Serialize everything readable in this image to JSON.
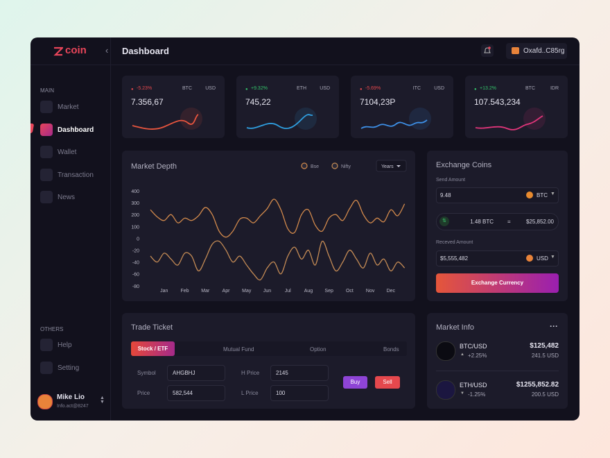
{
  "header": {
    "brand": "coin",
    "title": "Dashboard",
    "wallet": "Oxafd..C85rg"
  },
  "sidebar": {
    "main_label": "MAIN",
    "main_items": [
      "Market",
      "Dashboard",
      "Wallet",
      "Transaction",
      "News"
    ],
    "others_label": "OTHERS",
    "other_items": [
      "Help",
      "Setting"
    ],
    "user": {
      "name": "Mike Lio",
      "email": "Info.act@8247"
    }
  },
  "tickers": [
    {
      "change": "-5.23%",
      "base": "BTC",
      "quote": "USD",
      "price": "7.356,67",
      "color": "#e5484d",
      "line_color": "#e8553e"
    },
    {
      "change": "+9.32%",
      "base": "ETH",
      "quote": "USD",
      "price": "745,22",
      "color": "#33c46a",
      "line_color": "#2f9fe0"
    },
    {
      "change": "-5.69%",
      "base": "ITC",
      "quote": "USD",
      "price": "7104,23P",
      "color": "#e5484d",
      "line_color": "#3d8fe6"
    },
    {
      "change": "+13.2%",
      "base": "BTC",
      "quote": "IDR",
      "price": "107.543,234",
      "color": "#33c46a",
      "line_color": "#e0357a"
    }
  ],
  "chart_data": {
    "type": "line",
    "title": "Market Depth",
    "filter": "Years",
    "categories": [
      null,
      null,
      "Jan",
      null,
      null,
      "Feb",
      null,
      null,
      "Mar",
      null,
      null,
      "Apr",
      null,
      null,
      "May",
      null,
      null,
      "Jun",
      null,
      null,
      "Jul",
      null,
      null,
      "Aug",
      null,
      null,
      "Sep",
      null,
      null,
      "Oct",
      null,
      null,
      "Nov",
      null,
      null,
      "Dec",
      null,
      null
    ],
    "series": [
      {
        "name": "Bse",
        "color": "#d38a4c",
        "values": [
          240,
          180,
          150,
          200,
          130,
          170,
          150,
          190,
          260,
          200,
          60,
          10,
          60,
          160,
          170,
          130,
          190,
          250,
          330,
          240,
          80,
          50,
          200,
          240,
          110,
          60,
          170,
          200,
          150,
          250,
          320,
          200,
          130,
          170,
          140,
          240,
          190,
          290
        ]
      },
      {
        "name": "Nifty",
        "color": "#c48b55",
        "values": [
          -30,
          -40,
          -25,
          -35,
          -45,
          -25,
          -30,
          -55,
          -35,
          -10,
          -5,
          -20,
          -40,
          -30,
          -45,
          -60,
          -70,
          -50,
          -40,
          -60,
          -30,
          -15,
          -35,
          -20,
          -45,
          -5,
          -30,
          -55,
          -40,
          -20,
          -35,
          -50,
          -25,
          -45,
          -35,
          -55,
          -40,
          -50
        ]
      }
    ],
    "yticks": [
      400,
      300,
      200,
      100,
      0,
      -20,
      -40,
      -60,
      -80
    ],
    "ylim": [
      400,
      -80
    ]
  },
  "exchange": {
    "title": "Exchange Coins",
    "send_label": "Send Amount",
    "send_value": "9.48",
    "send_currency": "BTC",
    "rate_from": "1.48 BTC",
    "equals": "=",
    "rate_to": "$25,852.00",
    "received_label": "Receved Amount",
    "received_value": "$5,555,482",
    "received_currency": "USD",
    "button": "Exchange Currency"
  },
  "trade": {
    "title": "Trade Ticket",
    "tabs": [
      "Stock / ETF",
      "Mutual Fund",
      "Option",
      "Bonds"
    ],
    "symbol_label": "Symbol",
    "symbol": "AHGBHJ",
    "hprice_label": "H Price",
    "hprice": "2145",
    "price_label": "Price",
    "price": "582,544",
    "lprice_label": "L Price",
    "lprice": "100",
    "buy": "Buy",
    "sell": "Sell"
  },
  "market_info": {
    "title": "Market Info",
    "more": "···",
    "items": [
      {
        "pair": "BTC/USD",
        "change": "+2.25%",
        "price": "$125,482",
        "volume": "241.5 USD"
      },
      {
        "pair": "ETH/USD",
        "change": "-1.25%",
        "price": "$1255,852.82",
        "volume": "200.5 USD"
      }
    ]
  }
}
